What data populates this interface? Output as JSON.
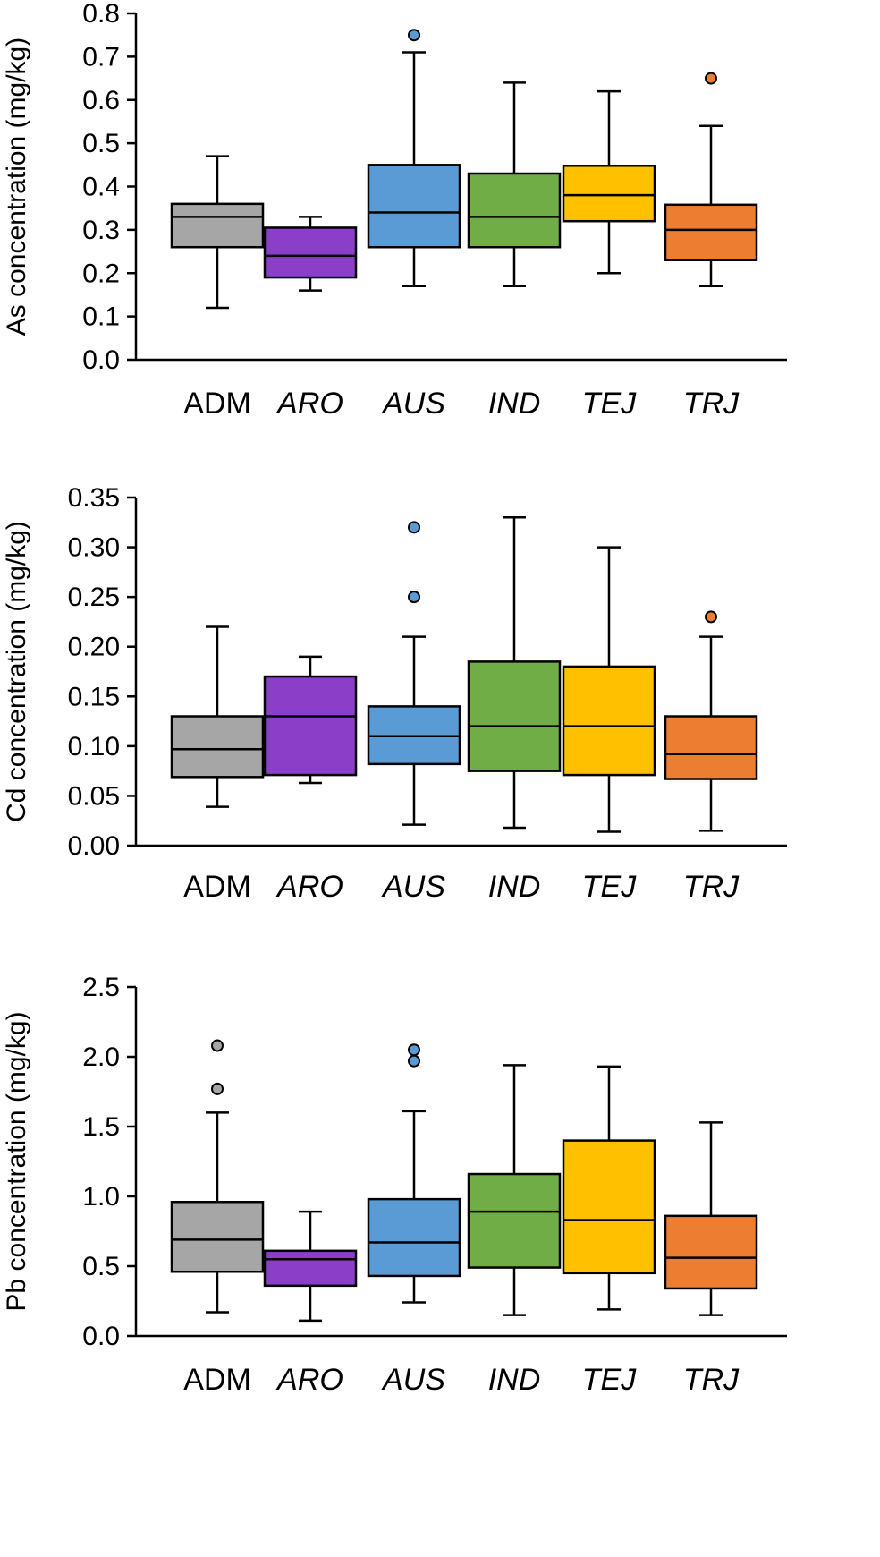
{
  "chart_data": [
    {
      "type": "box",
      "ylabel": "As concentration (mg/kg)",
      "ylim": [
        0,
        0.8
      ],
      "yticks": [
        "0.0",
        "0.1",
        "0.2",
        "0.3",
        "0.4",
        "0.5",
        "0.6",
        "0.7",
        "0.8"
      ],
      "categories": [
        {
          "label": "ADM",
          "italic": false,
          "color": "#a6a6a6",
          "whisker_low": 0.12,
          "q1": 0.26,
          "median": 0.33,
          "q3": 0.36,
          "whisker_high": 0.47,
          "outliers": []
        },
        {
          "label": "ARO",
          "italic": true,
          "color": "#8b3fc8",
          "whisker_low": 0.16,
          "q1": 0.19,
          "median": 0.24,
          "q3": 0.305,
          "whisker_high": 0.33,
          "outliers": []
        },
        {
          "label": "AUS",
          "italic": true,
          "color": "#5b9bd5",
          "whisker_low": 0.17,
          "q1": 0.26,
          "median": 0.34,
          "q3": 0.45,
          "whisker_high": 0.71,
          "outliers": [
            0.75
          ]
        },
        {
          "label": "IND",
          "italic": true,
          "color": "#70ad47",
          "whisker_low": 0.17,
          "q1": 0.26,
          "median": 0.33,
          "q3": 0.43,
          "whisker_high": 0.64,
          "outliers": []
        },
        {
          "label": "TEJ",
          "italic": true,
          "color": "#ffc000",
          "whisker_low": 0.2,
          "q1": 0.32,
          "median": 0.38,
          "q3": 0.448,
          "whisker_high": 0.62,
          "outliers": []
        },
        {
          "label": "TRJ",
          "italic": true,
          "color": "#ed7d31",
          "whisker_low": 0.17,
          "q1": 0.23,
          "median": 0.3,
          "q3": 0.358,
          "whisker_high": 0.54,
          "outliers": [
            0.65
          ]
        }
      ]
    },
    {
      "type": "box",
      "ylabel": "Cd concentration (mg/kg)",
      "ylim": [
        0,
        0.35
      ],
      "yticks": [
        "0.00",
        "0.05",
        "0.10",
        "0.15",
        "0.20",
        "0.25",
        "0.30",
        "0.35"
      ],
      "categories": [
        {
          "label": "ADM",
          "italic": false,
          "color": "#a6a6a6",
          "whisker_low": 0.039,
          "q1": 0.069,
          "median": 0.097,
          "q3": 0.13,
          "whisker_high": 0.22,
          "outliers": []
        },
        {
          "label": "ARO",
          "italic": true,
          "color": "#8b3fc8",
          "whisker_low": 0.063,
          "q1": 0.071,
          "median": 0.13,
          "q3": 0.17,
          "whisker_high": 0.19,
          "outliers": []
        },
        {
          "label": "AUS",
          "italic": true,
          "color": "#5b9bd5",
          "whisker_low": 0.021,
          "q1": 0.082,
          "median": 0.11,
          "q3": 0.14,
          "whisker_high": 0.21,
          "outliers": [
            0.25,
            0.32
          ]
        },
        {
          "label": "IND",
          "italic": true,
          "color": "#70ad47",
          "whisker_low": 0.018,
          "q1": 0.075,
          "median": 0.12,
          "q3": 0.185,
          "whisker_high": 0.33,
          "outliers": []
        },
        {
          "label": "TEJ",
          "italic": true,
          "color": "#ffc000",
          "whisker_low": 0.014,
          "q1": 0.071,
          "median": 0.12,
          "q3": 0.18,
          "whisker_high": 0.3,
          "outliers": []
        },
        {
          "label": "TRJ",
          "italic": true,
          "color": "#ed7d31",
          "whisker_low": 0.015,
          "q1": 0.067,
          "median": 0.092,
          "q3": 0.13,
          "whisker_high": 0.21,
          "outliers": [
            0.23
          ]
        }
      ]
    },
    {
      "type": "box",
      "ylabel": "Pb concentration (mg/kg)",
      "ylim": [
        0,
        2.5
      ],
      "yticks": [
        "0.0",
        "0.5",
        "1.0",
        "1.5",
        "2.0",
        "2.5"
      ],
      "categories": [
        {
          "label": "ADM",
          "italic": false,
          "color": "#a6a6a6",
          "whisker_low": 0.17,
          "q1": 0.46,
          "median": 0.69,
          "q3": 0.96,
          "whisker_high": 1.6,
          "outliers": [
            1.77,
            2.08
          ]
        },
        {
          "label": "ARO",
          "italic": true,
          "color": "#8b3fc8",
          "whisker_low": 0.11,
          "q1": 0.36,
          "median": 0.55,
          "q3": 0.61,
          "whisker_high": 0.89,
          "outliers": []
        },
        {
          "label": "AUS",
          "italic": true,
          "color": "#5b9bd5",
          "whisker_low": 0.24,
          "q1": 0.43,
          "median": 0.67,
          "q3": 0.98,
          "whisker_high": 1.61,
          "outliers": [
            1.97,
            2.05
          ]
        },
        {
          "label": "IND",
          "italic": true,
          "color": "#70ad47",
          "whisker_low": 0.15,
          "q1": 0.49,
          "median": 0.89,
          "q3": 1.16,
          "whisker_high": 1.94,
          "outliers": []
        },
        {
          "label": "TEJ",
          "italic": true,
          "color": "#ffc000",
          "whisker_low": 0.19,
          "q1": 0.45,
          "median": 0.83,
          "q3": 1.4,
          "whisker_high": 1.93,
          "outliers": []
        },
        {
          "label": "TRJ",
          "italic": true,
          "color": "#ed7d31",
          "whisker_low": 0.15,
          "q1": 0.34,
          "median": 0.56,
          "q3": 0.86,
          "whisker_high": 1.53,
          "outliers": []
        }
      ]
    }
  ]
}
